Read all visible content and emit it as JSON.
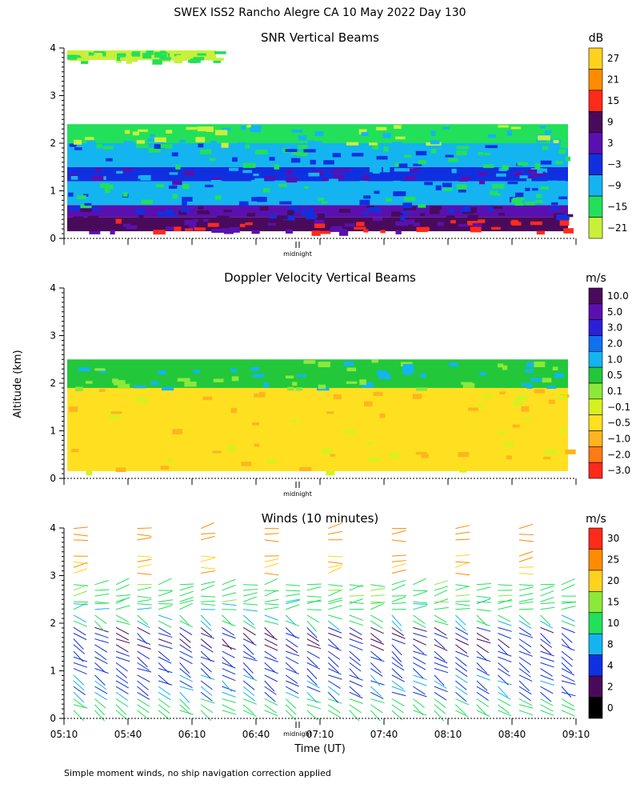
{
  "title": "SWEX ISS2 Rancho Alegre CA  10 May 2022 Day 130",
  "footer_note": "Simple moment winds, no ship navigation correction applied",
  "colors": {
    "white": "#ffffff",
    "black": "#000000"
  },
  "chart_data": [
    {
      "type": "heatmap",
      "title": "SNR Vertical Beams",
      "ylabel": "",
      "ylim": [
        0,
        4
      ],
      "y_ticks": [
        "0",
        "1",
        "2",
        "3",
        "4"
      ],
      "xlim": [
        "05:10",
        "09:10"
      ],
      "midnight_label": "midnight",
      "colorbar": {
        "unit": "dB",
        "labels": [
          "27",
          "21",
          "15",
          "9",
          "3",
          "−3",
          "−9",
          "−15",
          "−21"
        ],
        "colors": [
          "#ffd21e",
          "#ff8c00",
          "#ff2a1a",
          "#4a0a5c",
          "#5a10b0",
          "#1030e0",
          "#14b4f0",
          "#22e05a",
          "#c8f03a"
        ]
      },
      "layers": [
        {
          "altitude_km": [
            0.15,
            0.45
          ],
          "snr_db": 9
        },
        {
          "altitude_km": [
            0.45,
            0.7
          ],
          "snr_db": 3
        },
        {
          "altitude_km": [
            0.7,
            1.2
          ],
          "snr_db": -9
        },
        {
          "altitude_km": [
            1.2,
            1.5
          ],
          "snr_db": -3
        },
        {
          "altitude_km": [
            1.5,
            2.0
          ],
          "snr_db": -9
        },
        {
          "altitude_km": [
            2.0,
            2.4
          ],
          "snr_db": -15
        },
        {
          "altitude_km": [
            3.75,
            3.95
          ],
          "snr_db": -21
        }
      ]
    },
    {
      "type": "heatmap",
      "title": "Doppler Velocity Vertical Beams",
      "ylabel": "Altitude (km)",
      "ylim": [
        0,
        4
      ],
      "y_ticks": [
        "0",
        "1",
        "2",
        "3",
        "4"
      ],
      "xlim": [
        "05:10",
        "09:10"
      ],
      "midnight_label": "midnight",
      "colorbar": {
        "unit": "m/s",
        "labels": [
          "10.0",
          "5.0",
          "3.0",
          "2.0",
          "1.0",
          "0.5",
          "0.1",
          "−0.1",
          "−0.5",
          "−1.0",
          "−2.0",
          "−3.0"
        ],
        "colors": [
          "#4a0a5c",
          "#5a10b0",
          "#2a20d8",
          "#1070f0",
          "#14b4f0",
          "#22c83a",
          "#8ce83a",
          "#d8f020",
          "#ffe020",
          "#ffb41e",
          "#ff7a14",
          "#ff2a1a"
        ]
      },
      "layers": [
        {
          "altitude_km": [
            0.15,
            1.9
          ],
          "velocity_ms": -0.5
        },
        {
          "altitude_km": [
            1.9,
            2.5
          ],
          "velocity_ms": 0.5
        }
      ]
    },
    {
      "type": "wind-barbs",
      "title": "Winds (10 minutes)",
      "ylabel": "",
      "ylim": [
        0,
        4
      ],
      "y_ticks": [
        "0",
        "1",
        "2",
        "3",
        "4"
      ],
      "x_ticks": [
        "05:10",
        "05:40",
        "06:10",
        "06:40",
        "07:10",
        "07:40",
        "08:10",
        "08:40",
        "09:10"
      ],
      "xlabel": "Time (UT)",
      "midnight_label": "midnight",
      "colorbar": {
        "unit": "m/s",
        "labels": [
          "30",
          "25",
          "20",
          "15",
          "10",
          "8",
          "4",
          "2",
          "0"
        ],
        "colors": [
          "#ff2a1a",
          "#ff8c00",
          "#ffd21e",
          "#8ce83a",
          "#22e05a",
          "#14b4f0",
          "#1030e0",
          "#4a0a5c",
          "#000000"
        ]
      },
      "profile_speed_ms": [
        {
          "altitude_km": 0.3,
          "speed": 12
        },
        {
          "altitude_km": 0.8,
          "speed": 8
        },
        {
          "altitude_km": 1.3,
          "speed": 6
        },
        {
          "altitude_km": 1.8,
          "speed": 4
        },
        {
          "altitude_km": 2.3,
          "speed": 11
        },
        {
          "altitude_km": 2.7,
          "speed": 14
        },
        {
          "altitude_km": 3.3,
          "speed": 25
        },
        {
          "altitude_km": 4.0,
          "speed": 28
        }
      ]
    }
  ]
}
